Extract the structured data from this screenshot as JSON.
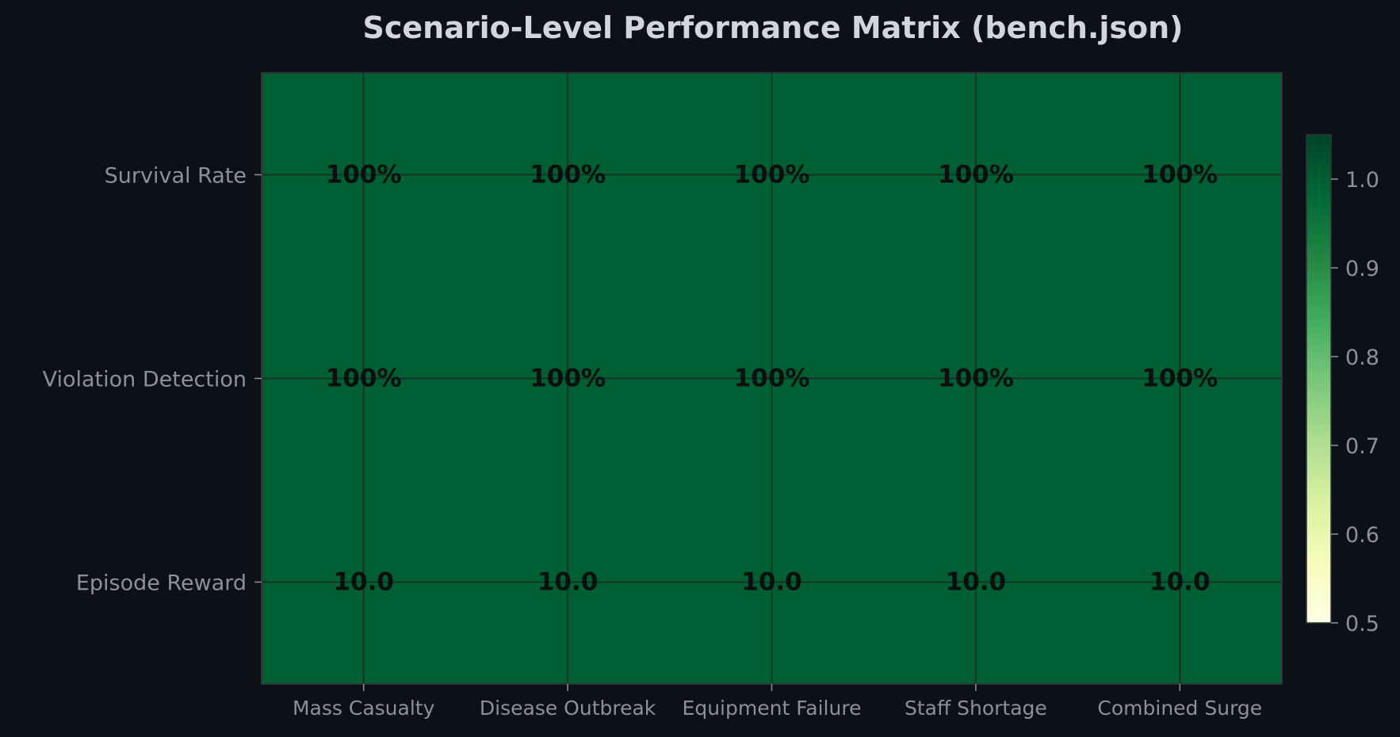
{
  "chart_data": {
    "type": "heatmap",
    "title": "Scenario-Level Performance Matrix (bench.json)",
    "xlabel": "",
    "ylabel": "",
    "columns": [
      "Mass Casualty",
      "Disease Outbreak",
      "Equipment Failure",
      "Staff Shortage",
      "Combined Surge"
    ],
    "rows": [
      "Survival Rate",
      "Violation Detection",
      "Episode Reward"
    ],
    "values": [
      [
        1.0,
        1.0,
        1.0,
        1.0,
        1.0
      ],
      [
        1.0,
        1.0,
        1.0,
        1.0,
        1.0
      ],
      [
        1.0,
        1.0,
        1.0,
        1.0,
        1.0
      ]
    ],
    "cell_labels": [
      [
        "100%",
        "100%",
        "100%",
        "100%",
        "100%"
      ],
      [
        "100%",
        "100%",
        "100%",
        "100%",
        "100%"
      ],
      [
        "10.0",
        "10.0",
        "10.0",
        "10.0",
        "10.0"
      ]
    ],
    "colorbar": {
      "colormap": "YlGn",
      "vmin": 0.5,
      "vmax": 1.05,
      "ticks": [
        0.5,
        0.6,
        0.7,
        0.8,
        0.9,
        1.0
      ],
      "tick_labels": [
        "0.5",
        "0.6",
        "0.7",
        "0.8",
        "0.9",
        "1.0"
      ],
      "colors": [
        "#ffffe5",
        "#f7fcb9",
        "#d9f0a3",
        "#addd8e",
        "#78c679",
        "#41ab5d",
        "#238443",
        "#006837",
        "#004529"
      ]
    },
    "grid": true
  },
  "colors": {
    "background": "#0d1017",
    "cell": "#005d31",
    "title": "#cfd6e0",
    "tick_text": "#8c9199",
    "cell_text": "#0b0f10",
    "grid_line": "#1a2a22"
  }
}
